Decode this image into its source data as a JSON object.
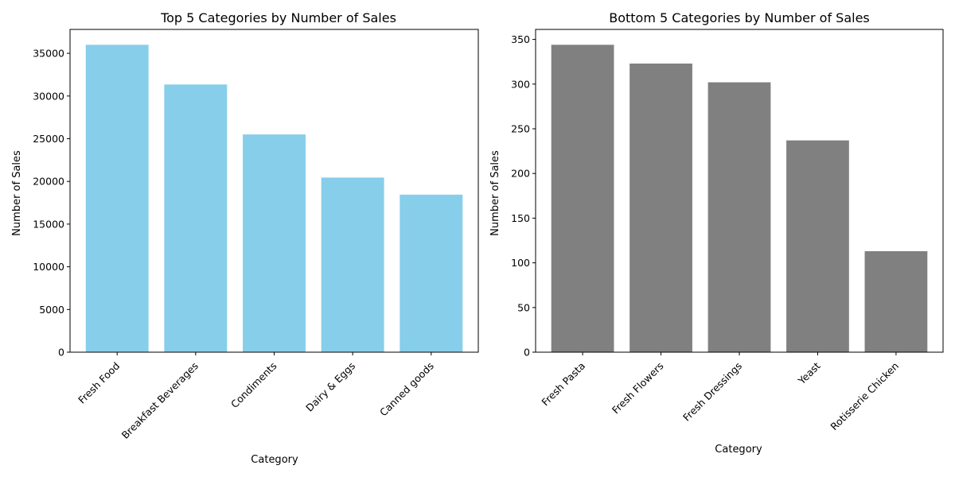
{
  "colors": {
    "top_bars": "#87CEEB",
    "bottom_bars": "#808080",
    "axes": "#000000",
    "background": "#ffffff"
  },
  "chart_data": [
    {
      "type": "bar",
      "title": "Top 5 Categories by Number of Sales",
      "xlabel": "Category",
      "ylabel": "Number of Sales",
      "categories": [
        "Fresh Food",
        "Breakfast Beverages",
        "Condiments",
        "Dairy & Eggs",
        "Canned goods"
      ],
      "values": [
        36000,
        31350,
        25500,
        20450,
        18450
      ],
      "ylim": [
        0,
        37800
      ],
      "yticks": [
        0,
        5000,
        10000,
        15000,
        20000,
        25000,
        30000,
        35000
      ],
      "grid": false,
      "color": "#87CEEB"
    },
    {
      "type": "bar",
      "title": "Bottom 5 Categories by Number of Sales",
      "xlabel": "Category",
      "ylabel": "Number of Sales",
      "categories": [
        "Fresh Pasta",
        "Fresh Flowers",
        "Fresh Dressings",
        "Yeast",
        "Rotisserie Chicken"
      ],
      "values": [
        344,
        323,
        302,
        237,
        113
      ],
      "ylim": [
        0,
        361.2
      ],
      "yticks": [
        0,
        50,
        100,
        150,
        200,
        250,
        300,
        350
      ],
      "grid": false,
      "color": "#808080"
    }
  ]
}
